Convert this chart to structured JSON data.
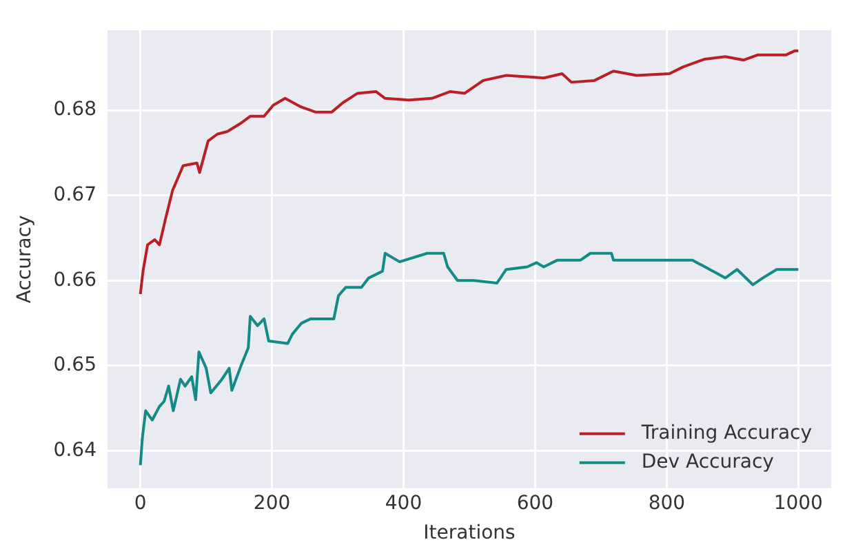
{
  "chart_data": {
    "type": "line",
    "xlabel": "Iterations",
    "ylabel": "Accuracy",
    "xlim": [
      -50,
      1050
    ],
    "xticks": [
      0,
      200,
      400,
      600,
      800,
      1000
    ],
    "ylim": [
      0.6356,
      0.6894
    ],
    "yticks": [
      0.64,
      0.65,
      0.66,
      0.67,
      0.68
    ],
    "grid": true,
    "legend": "bottom right",
    "marker": "none",
    "line_style": "solid",
    "series": [
      {
        "name": "Training Accuracy",
        "color": "#b82025",
        "x": [
          0,
          4,
          11,
          22,
          29,
          39,
          49,
          65,
          86,
          90,
          103,
          117,
          132,
          153,
          167,
          188,
          202,
          220,
          244,
          266,
          291,
          308,
          330,
          358,
          372,
          408,
          443,
          471,
          493,
          521,
          556,
          613,
          641,
          655,
          690,
          719,
          754,
          804,
          825,
          857,
          889,
          917,
          938,
          981,
          995,
          1000
        ],
        "values": [
          0.6584,
          0.6611,
          0.6642,
          0.6648,
          0.6642,
          0.6675,
          0.6706,
          0.6735,
          0.6738,
          0.6727,
          0.6764,
          0.6772,
          0.6775,
          0.6785,
          0.6793,
          0.6793,
          0.6806,
          0.6814,
          0.6804,
          0.6798,
          0.6798,
          0.6809,
          0.682,
          0.6822,
          0.6814,
          0.6812,
          0.6814,
          0.6822,
          0.682,
          0.6835,
          0.6841,
          0.6838,
          0.6843,
          0.6833,
          0.6835,
          0.6846,
          0.6841,
          0.6843,
          0.6851,
          0.686,
          0.6863,
          0.6859,
          0.6865,
          0.6865,
          0.687,
          0.687
        ]
      },
      {
        "name": "Dev Accuracy",
        "color": "#138a86",
        "x": [
          0,
          3,
          8,
          18,
          29,
          36,
          43,
          50,
          61,
          68,
          78,
          84,
          89,
          100,
          107,
          124,
          135,
          139,
          153,
          164,
          167,
          178,
          188,
          195,
          224,
          231,
          245,
          259,
          294,
          301,
          312,
          336,
          347,
          368,
          372,
          394,
          436,
          461,
          467,
          482,
          507,
          542,
          556,
          588,
          602,
          613,
          634,
          669,
          684,
          716,
          719,
          766,
          839,
          889,
          907,
          931,
          946,
          967,
          1000
        ],
        "values": [
          0.6383,
          0.6415,
          0.6447,
          0.6436,
          0.6452,
          0.6458,
          0.6476,
          0.6447,
          0.6484,
          0.6476,
          0.6487,
          0.646,
          0.6516,
          0.6497,
          0.6468,
          0.6484,
          0.6497,
          0.6471,
          0.65,
          0.6521,
          0.6558,
          0.6547,
          0.6555,
          0.6529,
          0.6526,
          0.6537,
          0.655,
          0.6555,
          0.6555,
          0.6582,
          0.6592,
          0.6592,
          0.6603,
          0.6611,
          0.6632,
          0.6622,
          0.6632,
          0.6632,
          0.6616,
          0.66,
          0.66,
          0.6597,
          0.6613,
          0.6616,
          0.6621,
          0.6616,
          0.6624,
          0.6624,
          0.6632,
          0.6632,
          0.6624,
          0.6624,
          0.6624,
          0.6603,
          0.6613,
          0.6595,
          0.6603,
          0.6613,
          0.6613
        ]
      }
    ]
  }
}
